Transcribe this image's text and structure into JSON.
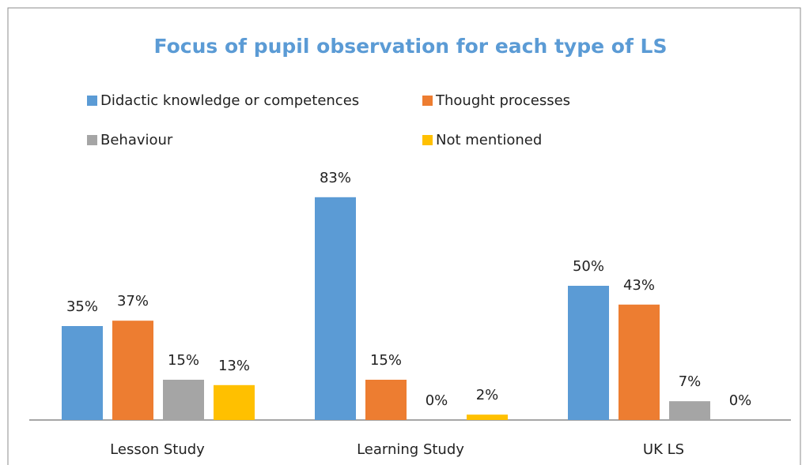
{
  "chart_data": {
    "type": "bar",
    "title": "Focus of pupil observation for each type of LS",
    "categories": [
      "Lesson Study",
      "Learning Study",
      "UK LS"
    ],
    "series": [
      {
        "name": "Didactic knowledge or competences",
        "color": "#5b9bd5",
        "values": [
          35,
          83,
          50
        ],
        "value_labels": [
          "35%",
          "83%",
          "50%"
        ]
      },
      {
        "name": "Thought processes",
        "color": "#ed7d31",
        "values": [
          37,
          15,
          43
        ],
        "value_labels": [
          "37%",
          "15%",
          "43%"
        ]
      },
      {
        "name": "Behaviour",
        "color": "#a5a5a5",
        "values": [
          15,
          0,
          7
        ],
        "value_labels": [
          "15%",
          "0%",
          "7%"
        ]
      },
      {
        "name": "Not mentioned",
        "color": "#ffc000",
        "values": [
          13,
          2,
          0
        ],
        "value_labels": [
          "13%",
          "2%",
          "0%"
        ]
      }
    ]
  }
}
